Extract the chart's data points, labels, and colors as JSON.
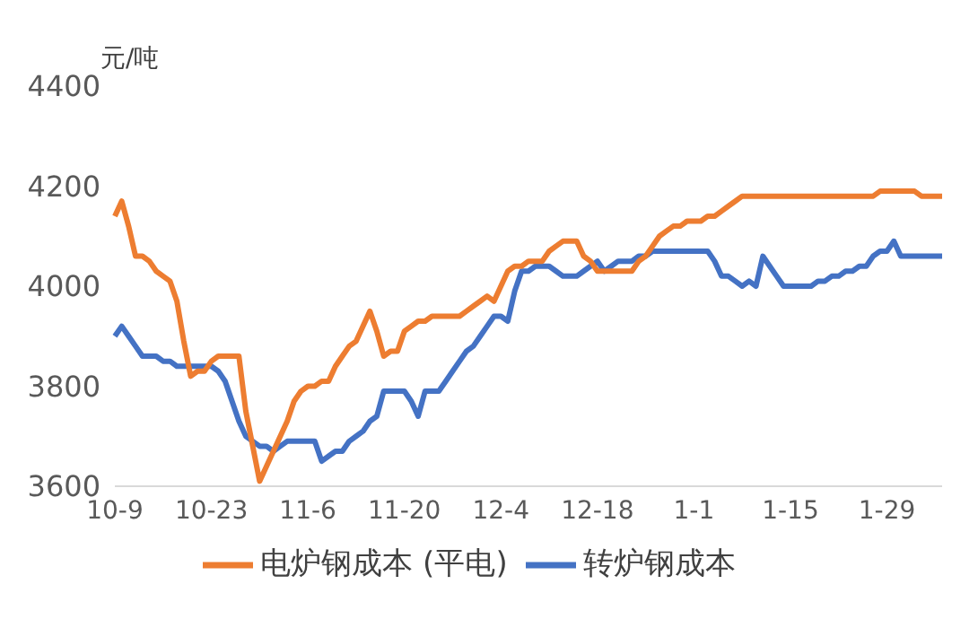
{
  "chart_data": {
    "type": "line",
    "ylabel": "元/吨",
    "categories": [
      "10-9",
      null,
      null,
      null,
      null,
      null,
      null,
      null,
      null,
      null,
      null,
      null,
      null,
      null,
      "10-23",
      null,
      null,
      null,
      null,
      null,
      null,
      null,
      null,
      null,
      null,
      null,
      null,
      null,
      "11-6",
      null,
      null,
      null,
      null,
      null,
      null,
      null,
      null,
      null,
      null,
      null,
      null,
      null,
      "11-20",
      null,
      null,
      null,
      null,
      null,
      null,
      null,
      null,
      null,
      null,
      null,
      null,
      null,
      "12-4",
      null,
      null,
      null,
      null,
      null,
      null,
      null,
      null,
      null,
      null,
      null,
      null,
      null,
      "12-18",
      null,
      null,
      null,
      null,
      null,
      null,
      null,
      null,
      null,
      null,
      null,
      null,
      null,
      "1-1",
      null,
      null,
      null,
      null,
      null,
      null,
      null,
      null,
      null,
      null,
      null,
      null,
      null,
      "1-15",
      null,
      null,
      null,
      null,
      null,
      null,
      null,
      null,
      null,
      null,
      null,
      null,
      null,
      "1-29",
      null,
      null,
      null,
      null,
      null,
      null,
      null,
      null
    ],
    "ylim": [
      3600,
      4400
    ],
    "yticks": [
      3600,
      3800,
      4000,
      4200,
      4400
    ],
    "grid": false,
    "legend": "bottom",
    "marker": "none",
    "line_style": "solid",
    "series": [
      {
        "name": "转炉钢成本",
        "color": "#4472c4",
        "values": [
          3900,
          3920,
          3900,
          3880,
          3860,
          3860,
          3860,
          3850,
          3850,
          3840,
          3840,
          3840,
          3840,
          3840,
          3840,
          3830,
          3810,
          3770,
          3730,
          3700,
          3690,
          3680,
          3680,
          3670,
          3680,
          3690,
          3690,
          3690,
          3690,
          3690,
          3650,
          3660,
          3670,
          3670,
          3690,
          3700,
          3710,
          3730,
          3740,
          3790,
          3790,
          3790,
          3790,
          3770,
          3740,
          3790,
          3790,
          3790,
          3810,
          3830,
          3850,
          3870,
          3880,
          3900,
          3920,
          3940,
          3940,
          3930,
          3990,
          4030,
          4030,
          4040,
          4040,
          4040,
          4030,
          4020,
          4020,
          4020,
          4030,
          4040,
          4050,
          4030,
          4040,
          4050,
          4050,
          4050,
          4060,
          4060,
          4070,
          4070,
          4070,
          4070,
          4070,
          4070,
          4070,
          4070,
          4070,
          4050,
          4020,
          4020,
          4010,
          4000,
          4010,
          4000,
          4060,
          4040,
          4020,
          4000,
          4000,
          4000,
          4000,
          4000,
          4010,
          4010,
          4020,
          4020,
          4030,
          4030,
          4040,
          4040,
          4060,
          4070,
          4070,
          4090,
          4060,
          4060,
          4060,
          4060,
          4060,
          4060,
          4060
        ]
      },
      {
        "name": "电炉钢成本 (平电)",
        "color": "#ed7d31",
        "values": [
          4140,
          4170,
          4120,
          4060,
          4060,
          4050,
          4030,
          4020,
          4010,
          3970,
          3890,
          3820,
          3830,
          3830,
          3850,
          3860,
          3860,
          3860,
          3860,
          3750,
          3680,
          3610,
          3640,
          3670,
          3700,
          3730,
          3770,
          3790,
          3800,
          3800,
          3810,
          3810,
          3840,
          3860,
          3880,
          3890,
          3920,
          3950,
          3910,
          3860,
          3870,
          3870,
          3910,
          3920,
          3930,
          3930,
          3940,
          3940,
          3940,
          3940,
          3940,
          3950,
          3960,
          3970,
          3980,
          3970,
          4000,
          4030,
          4040,
          4040,
          4050,
          4050,
          4050,
          4070,
          4080,
          4090,
          4090,
          4090,
          4060,
          4050,
          4030,
          4030,
          4030,
          4030,
          4030,
          4030,
          4050,
          4060,
          4080,
          4100,
          4110,
          4120,
          4120,
          4130,
          4130,
          4130,
          4140,
          4140,
          4150,
          4160,
          4170,
          4180,
          4180,
          4180,
          4180,
          4180,
          4180,
          4180,
          4180,
          4180,
          4180,
          4180,
          4180,
          4180,
          4180,
          4180,
          4180,
          4180,
          4180,
          4180,
          4180,
          4190,
          4190,
          4190,
          4190,
          4190,
          4190,
          4180,
          4180,
          4180,
          4180
        ]
      }
    ]
  }
}
